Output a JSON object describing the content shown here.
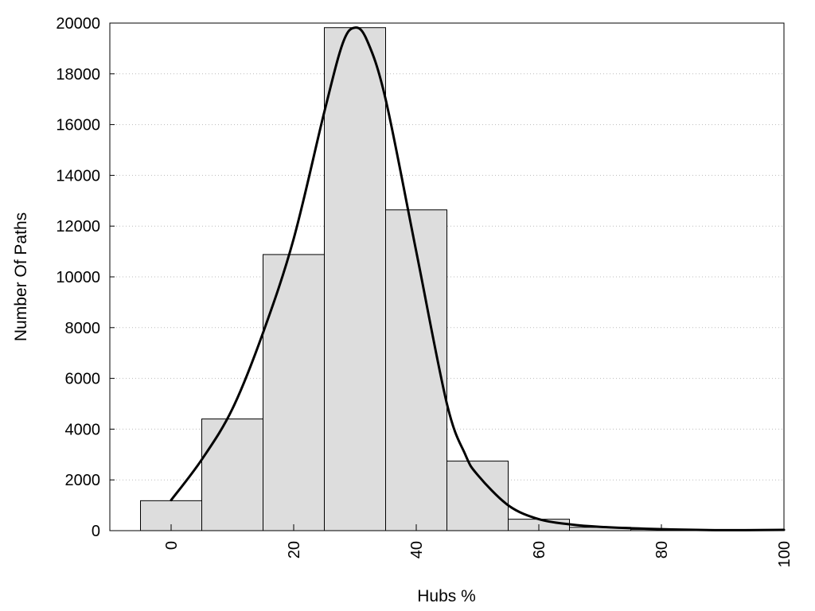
{
  "chart_data": {
    "type": "bar",
    "subtype": "histogram-with-density-curve",
    "title": "",
    "xlabel": "Hubs %",
    "ylabel": "Number Of Paths",
    "xlim": [
      -10,
      100
    ],
    "ylim": [
      0,
      20000
    ],
    "x_ticks": [
      "0",
      "20",
      "40",
      "60",
      "80",
      "100"
    ],
    "y_ticks": [
      "0",
      "2000",
      "4000",
      "6000",
      "8000",
      "10000",
      "12000",
      "14000",
      "16000",
      "18000",
      "20000"
    ],
    "grid": "horizontal dotted",
    "legend": "none",
    "bar_color": "#dddddd",
    "line_color": "#000000",
    "bins": [
      {
        "x_start": -5,
        "x_end": 5,
        "count": 1180
      },
      {
        "x_start": 5,
        "x_end": 15,
        "count": 4400
      },
      {
        "x_start": 15,
        "x_end": 25,
        "count": 10880
      },
      {
        "x_start": 25,
        "x_end": 35,
        "count": 19820
      },
      {
        "x_start": 35,
        "x_end": 45,
        "count": 12640
      },
      {
        "x_start": 45,
        "x_end": 55,
        "count": 2740
      },
      {
        "x_start": 55,
        "x_end": 65,
        "count": 450
      },
      {
        "x_start": 65,
        "x_end": 75,
        "count": 130
      },
      {
        "x_start": 75,
        "x_end": 85,
        "count": 50
      },
      {
        "x_start": 85,
        "x_end": 95,
        "count": 20
      },
      {
        "x_start": 95,
        "x_end": 100,
        "count": 20
      }
    ],
    "density_curve": {
      "x": [
        0,
        5,
        10,
        15,
        20,
        25,
        28,
        30,
        32,
        35,
        40,
        45,
        48,
        50,
        55,
        60,
        65,
        70,
        80,
        90,
        100
      ],
      "y": [
        1200,
        2800,
        4800,
        7800,
        11500,
        16500,
        19200,
        19820,
        19300,
        17000,
        11000,
        5000,
        3000,
        2200,
        1000,
        450,
        250,
        150,
        60,
        20,
        30
      ]
    }
  }
}
